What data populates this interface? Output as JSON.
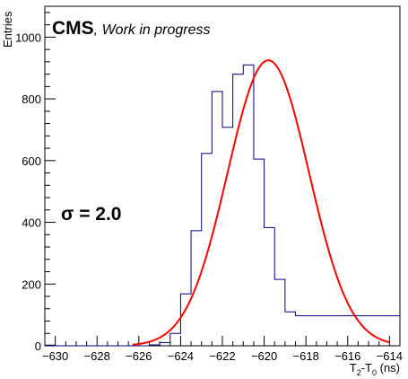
{
  "chart_data": {
    "type": "histogram",
    "xlabel": {
      "base": "T",
      "sub1": "2",
      "mid": "-T",
      "sub2": "0",
      "unit": " (ns)"
    },
    "ylabel": "Entries",
    "xlim": [
      -630.5,
      -613.5
    ],
    "ylim": [
      0,
      1100
    ],
    "xticks": [
      -630,
      -628,
      -626,
      -624,
      -622,
      -620,
      -618,
      -616,
      -614
    ],
    "xtick_labels": [
      "−630",
      "−628",
      "−626",
      "−624",
      "−622",
      "−620",
      "−618",
      "−616",
      "−614"
    ],
    "yticks": [
      0,
      200,
      400,
      600,
      800,
      1000
    ],
    "ytick_labels": [
      "0",
      "200",
      "400",
      "600",
      "800",
      "1000"
    ],
    "bin_edges": [
      -630.5,
      -630,
      -629.5,
      -629,
      -628.5,
      -628,
      -627.5,
      -627,
      -626.5,
      -626,
      -625.5,
      -625,
      -624.5,
      -624,
      -623.5,
      -623,
      -622.5,
      -622,
      -621.5,
      -621,
      -620.5,
      -620,
      -619.5,
      -619,
      -618.5,
      -618,
      -617.5,
      -617,
      -616.5,
      -616,
      -615.5,
      -615,
      -614.5,
      -614,
      -613.5
    ],
    "bin_counts": [
      2,
      0,
      0,
      0,
      0,
      0,
      0,
      0,
      0,
      0,
      3,
      10,
      40,
      168,
      373,
      623,
      824,
      708,
      880,
      910,
      605,
      383,
      215,
      110,
      97,
      97,
      97,
      97,
      97,
      97,
      97,
      97,
      97,
      97
    ],
    "histogram_color": "#000080",
    "fit": {
      "function": "gaussian",
      "amplitude": 925,
      "mean": -619.8,
      "sigma": 1.95,
      "x_range": [
        -626.3,
        -614.0
      ],
      "color": "#ff0000"
    },
    "annotations": {
      "experiment": "CMS",
      "status": ", Work in progress",
      "sigma_label": "σ = 2.0"
    }
  }
}
